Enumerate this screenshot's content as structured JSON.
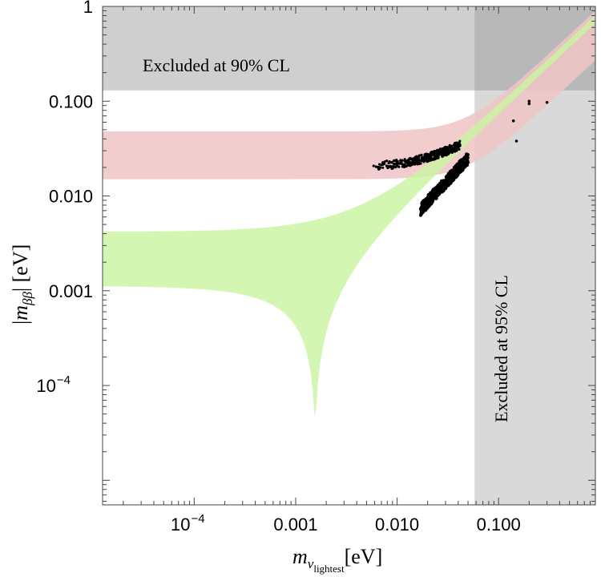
{
  "chart_data": {
    "type": "scatter",
    "xscale": "log",
    "yscale": "log",
    "xlim": [
      1.25e-05,
      0.9
    ],
    "ylim": [
      5.5e-06,
      1.0
    ],
    "x_ticks": [
      {
        "value": 0.0001,
        "label": "10",
        "sup": "−4"
      },
      {
        "value": 0.001,
        "label": "0.001",
        "sup": ""
      },
      {
        "value": 0.01,
        "label": "0.010",
        "sup": ""
      },
      {
        "value": 0.1,
        "label": "0.100",
        "sup": ""
      }
    ],
    "y_ticks": [
      {
        "value": 1.0,
        "label": "1",
        "sup": ""
      },
      {
        "value": 0.1,
        "label": "0.100",
        "sup": ""
      },
      {
        "value": 0.01,
        "label": "0.010",
        "sup": ""
      },
      {
        "value": 0.001,
        "label": "0.001",
        "sup": ""
      },
      {
        "value": 0.0001,
        "label": "10",
        "sup": "−4"
      }
    ],
    "xlabel": {
      "main": "m",
      "sub1": "ν",
      "sub2": "lightest",
      "unit": "[eV]"
    },
    "ylabel": {
      "pre": "|m",
      "sub": "ββ",
      "post": "| [eV]"
    },
    "regions": {
      "excluded_horizontal": {
        "y_min": 0.13,
        "label": "Excluded at 90% CL",
        "color": "#cfcfcf"
      },
      "excluded_vertical": {
        "x_min": 0.058,
        "label": "Excluded at 95% CL",
        "color": "#d9d9d9"
      },
      "inverted_band": {
        "color": "#f0c4c4",
        "opacity": 0.85
      },
      "normal_band": {
        "color": "#c8f5a0",
        "opacity": 0.8
      }
    },
    "scatter_clusters": [
      {
        "name": "upper",
        "x_from": 0.0055,
        "x_to": 0.042,
        "y_from": 0.019,
        "y_to": 0.032,
        "n": 420
      },
      {
        "name": "lower",
        "x_from": 0.017,
        "x_to": 0.05,
        "y_from": 0.007,
        "y_to": 0.026,
        "n": 420
      }
    ],
    "scatter_extra": [
      [
        0.2,
        0.1
      ],
      [
        0.2,
        0.094
      ],
      [
        0.3,
        0.097
      ],
      [
        0.14,
        0.062
      ],
      [
        0.15,
        0.038
      ]
    ]
  }
}
